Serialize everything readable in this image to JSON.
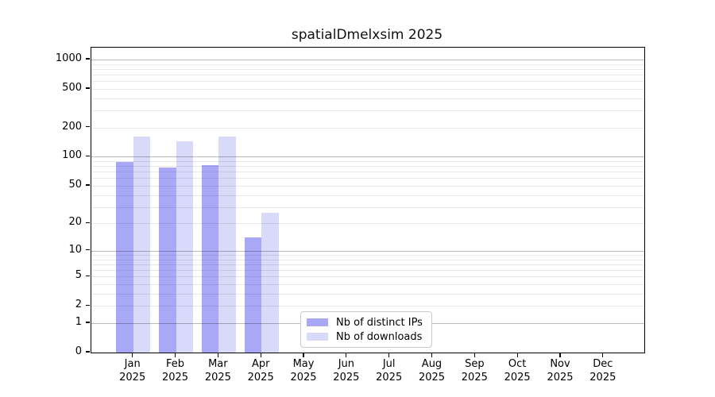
{
  "title": "spatialDmelxsim 2025",
  "colors": {
    "ips_bar": "#a8a8f7",
    "downloads_bar": "#d9d9fa",
    "grid_major": "#b9b9b9",
    "grid_minor": "#e9e9e9",
    "axis": "#000000",
    "legend_border": "#cbcbcb"
  },
  "legend": {
    "items": [
      {
        "label": "Nb of distinct IPs",
        "color": "#a8a8f7"
      },
      {
        "label": "Nb of downloads",
        "color": "#d9d9fa"
      }
    ]
  },
  "chart_data": {
    "type": "bar",
    "title": "spatialDmelxsim 2025",
    "subtitle": "",
    "xlabel": "",
    "ylabel": "",
    "year": "2025",
    "months": [
      "Jan",
      "Feb",
      "Mar",
      "Apr",
      "May",
      "Jun",
      "Jul",
      "Aug",
      "Sep",
      "Oct",
      "Nov",
      "Dec"
    ],
    "categories": [
      "Jan 2025",
      "Feb 2025",
      "Mar 2025",
      "Apr 2025",
      "May 2025",
      "Jun 2025",
      "Jul 2025",
      "Aug 2025",
      "Sep 2025",
      "Oct 2025",
      "Nov 2025",
      "Dec 2025"
    ],
    "series": [
      {
        "name": "Nb of distinct IPs",
        "color": "#a8a8f7",
        "values": [
          88,
          78,
          82,
          14,
          null,
          null,
          null,
          null,
          null,
          null,
          null,
          null
        ]
      },
      {
        "name": "Nb of downloads",
        "color": "#d9d9fa",
        "values": [
          162,
          145,
          162,
          26,
          null,
          null,
          null,
          null,
          null,
          null,
          null,
          null
        ]
      }
    ],
    "yticks": [
      0,
      1,
      2,
      5,
      10,
      20,
      50,
      100,
      200,
      500,
      1000
    ],
    "scale": "log1p",
    "ylim": [
      0,
      1320
    ],
    "grid": "horizontal major+minor",
    "legend_position": "inside bottom-center-left"
  }
}
